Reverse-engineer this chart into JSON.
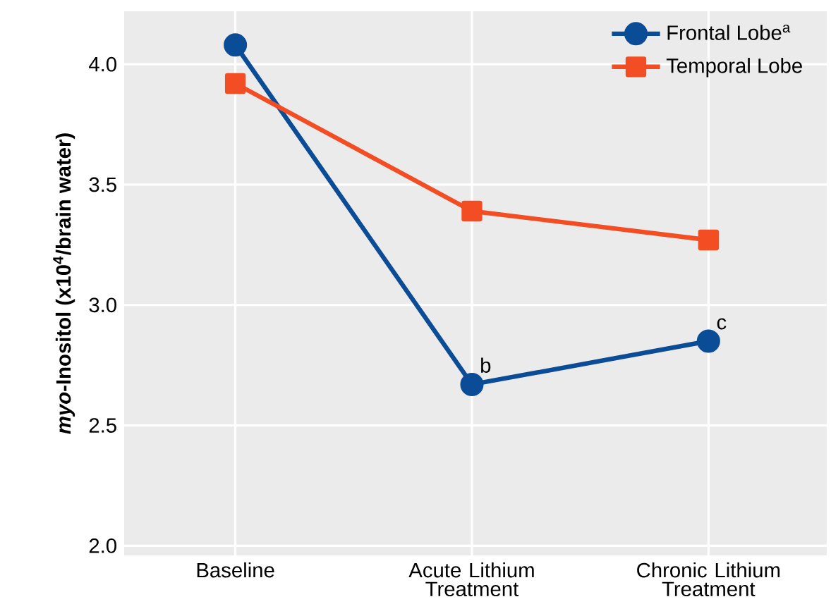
{
  "chart_data": {
    "type": "line",
    "categories": [
      "Baseline",
      "Acute Lithium Treatment",
      "Chronic Lithium Treatment"
    ],
    "ylabel": "*myo*-Inositol (x10$^{4}$/brain water)",
    "series": [
      {
        "name": "Frontal Lobe$^{a}$",
        "color": "#0b4c97",
        "marker": "circle",
        "values": [
          4.08,
          2.67,
          2.85
        ]
      },
      {
        "name": "Temporal Lobe",
        "color": "#f24d23",
        "marker": "square",
        "values": [
          3.92,
          3.39,
          3.27
        ]
      }
    ],
    "ylim": [
      1.96,
      4.22
    ],
    "yticks": [
      {
        "value": 2,
        "label": "2.0"
      },
      2.5,
      {
        "value": 3,
        "label": "3.0"
      },
      3.5,
      {
        "value": 4,
        "label": "4.0"
      }
    ],
    "grid": true,
    "legend": "top right",
    "line_style": "solid",
    "annotations": [
      {
        "text": "b",
        "x": "Acute Lithium Treatment",
        "y": 2.67
      },
      {
        "text": "c",
        "x": "Chronic Lithium Treatment",
        "y": 2.85
      }
    ]
  }
}
